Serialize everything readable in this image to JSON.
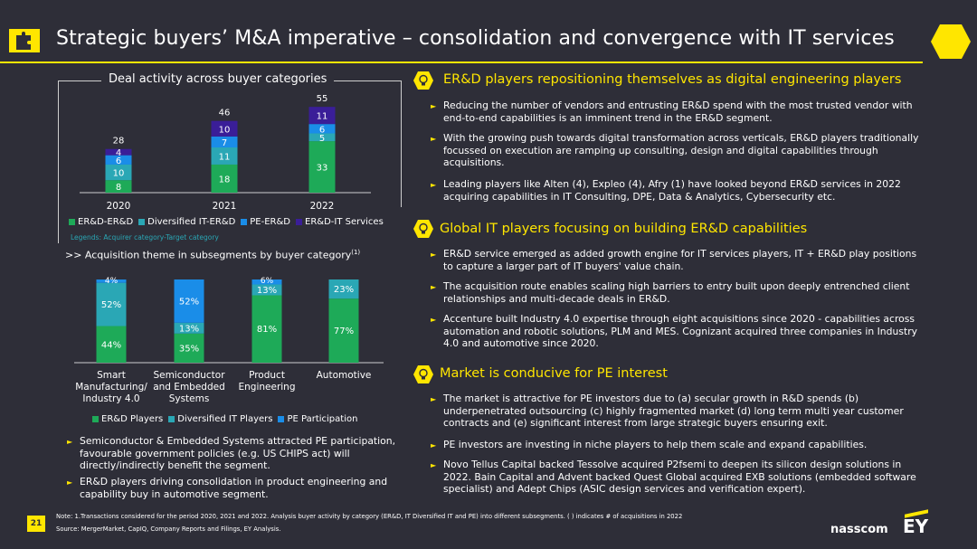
{
  "header": {
    "title": "Strategic buyers’ M&A imperative – consolidation and convergence with IT services"
  },
  "colors": {
    "yellow": "#ffe600",
    "green": "#1eaa58",
    "teal": "#2aa7b5",
    "blue": "#1a8de8",
    "purple": "#3a1e98",
    "bg": "#2e2e38"
  },
  "chart_data": [
    {
      "type": "bar",
      "stacked": true,
      "title": "Deal activity across buyer categories",
      "categories": [
        "2020",
        "2021",
        "2022"
      ],
      "totals": [
        28,
        46,
        55
      ],
      "series": [
        {
          "name": "ER&D-ER&D",
          "color": "#1eaa58",
          "values": [
            8,
            18,
            33
          ]
        },
        {
          "name": "Diversified IT-ER&D",
          "color": "#2aa7b5",
          "values": [
            10,
            11,
            5
          ]
        },
        {
          "name": "PE-ER&D",
          "color": "#1a8de8",
          "values": [
            6,
            7,
            6
          ]
        },
        {
          "name": "ER&D-IT Services",
          "color": "#3a1e98",
          "values": [
            4,
            10,
            11
          ]
        }
      ],
      "legend_note": "Legends: Acquirer category-Target category",
      "ylim": [
        0,
        58
      ]
    },
    {
      "type": "bar",
      "stacked": true,
      "percent": true,
      "title": ">> Acquisition theme in subsegments by buyer category",
      "title_sup": "(1)",
      "categories": [
        [
          "Smart",
          "Manufacturing/",
          "Industry 4.0"
        ],
        [
          "Semiconductor",
          "and Embedded",
          "Systems"
        ],
        [
          "Product",
          "Engineering"
        ],
        [
          "Automotive"
        ]
      ],
      "series": [
        {
          "name": "ER&D Players",
          "color": "#1eaa58",
          "values": [
            44,
            35,
            81,
            77
          ],
          "labels": [
            "44%",
            "35%",
            "81%",
            "77%"
          ]
        },
        {
          "name": "Diversified IT Players",
          "color": "#2aa7b5",
          "values": [
            52,
            13,
            13,
            23
          ],
          "labels": [
            "52%",
            "13%",
            "13%",
            "23%"
          ]
        },
        {
          "name": "PE Participation",
          "color": "#1a8de8",
          "values": [
            4,
            52,
            6,
            0
          ],
          "labels": [
            "4%",
            "52%",
            "6%",
            ""
          ]
        }
      ],
      "ylim": [
        0,
        100
      ]
    }
  ],
  "left_bullets": [
    "Semiconductor & Embedded Systems attracted PE participation, favourable government policies (e.g. US CHIPS act) will directly/indirectly benefit the segment.",
    "ER&D players driving consolidation in product engineering and capability buy in automotive segment."
  ],
  "sections": [
    {
      "heading": "ER&D players repositioning themselves as digital engineering players",
      "bullets": [
        "Reducing the number of vendors and entrusting ER&D spend with the most trusted vendor with end-to-end capabilities is an imminent trend in the ER&D segment.",
        "With the growing push towards digital transformation across verticals, ER&D players traditionally focussed on execution are ramping up consulting, design and digital capabilities through acquisitions.",
        "Leading players like Alten (4), Expleo (4), Afry (1) have looked beyond ER&D services in 2022 acquiring capabilities in IT Consulting, DPE, Data & Analytics, Cybersecurity etc."
      ]
    },
    {
      "heading": "Global IT players focusing on building ER&D capabilities",
      "bullets": [
        "ER&D service emerged as added growth engine for IT services players, IT + ER&D play positions to capture a larger part of IT buyers' value chain.",
        "The acquisition route enables scaling high barriers to entry built upon deeply entrenched client relationships and multi-decade deals in ER&D.",
        "Accenture built Industry 4.0 expertise through eight acquisitions since 2020 - capabilities across automation and robotic solutions, PLM and MES. Cognizant acquired three companies in Industry 4.0 and automotive since 2020."
      ]
    },
    {
      "heading": "Market is conducive for PE interest",
      "bullets": [
        "The market is attractive for PE investors due to (a) secular growth in R&D spends (b) underpenetrated outsourcing (c) highly fragmented market (d) long term multi year customer contracts and (e) significant interest from large strategic buyers ensuring exit.",
        "PE investors are investing in niche players to help them scale and expand capabilities.",
        "Novo Tellus Capital backed Tessolve acquired P2fsemi to deepen its silicon design solutions in 2022. Bain Capital and Advent backed Quest Global acquired EXB solutions (embedded software specialist) and Adept Chips (ASIC design services and verification expert)."
      ]
    }
  ],
  "footer": {
    "page": "21",
    "note": "Note: 1.Transactions considered for the period 2020, 2021 and 2022. Analysis buyer activity by category (ER&D, IT Diversified IT and PE) into different subsegments. ( ) indicates # of acquisitions in 2022",
    "source": "Source: MergerMarket, CapIQ, Company Reports and Filings, EY Analysis.",
    "brand1": "nasscom",
    "brand2": "EY"
  }
}
